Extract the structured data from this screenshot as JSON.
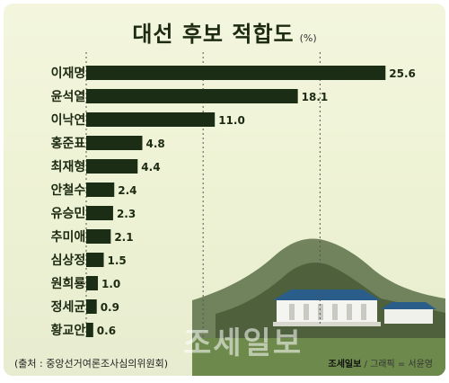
{
  "chart_data": {
    "type": "bar",
    "orientation": "horizontal",
    "title": "대선 후보 적합도",
    "unit": "(%)",
    "categories": [
      "이재명",
      "윤석열",
      "이낙연",
      "홍준표",
      "최재형",
      "안철수",
      "유승민",
      "추미애",
      "심상정",
      "원희룡",
      "정세균",
      "황교안"
    ],
    "values": [
      25.6,
      18.1,
      11.0,
      4.8,
      4.4,
      2.4,
      2.3,
      2.1,
      1.5,
      1.0,
      0.9,
      0.6
    ],
    "value_labels": [
      "25.6",
      "18.1",
      "11.0",
      "4.8",
      "4.4",
      "2.4",
      "2.3",
      "2.1",
      "1.5",
      "1.0",
      "0.9",
      "0.6"
    ],
    "xlim": [
      0,
      26.5
    ],
    "gridlines": [
      10,
      20
    ],
    "bar_color": "#1b2d14"
  },
  "footer": {
    "source": "(출처 : 중앙선거여론조사심의위원회)",
    "brand": "조세일보",
    "credit": "/ 그래픽 = 서윤영"
  },
  "watermark": "조세일보"
}
